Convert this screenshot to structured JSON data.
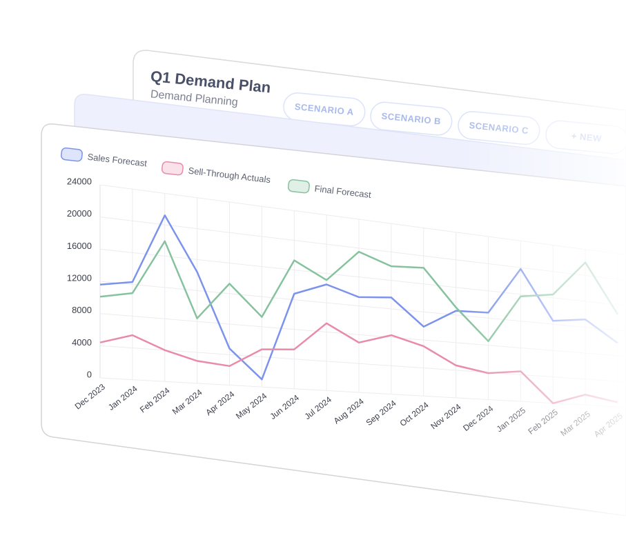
{
  "header": {
    "title": "Q1 Demand Plan",
    "subtitle": "Demand Planning"
  },
  "tabs": [
    "SCENARIO A",
    "SCENARIO B",
    "SCENARIO C",
    "+ NEW"
  ],
  "chart_data": {
    "type": "line",
    "categories": [
      "Dec 2023",
      "Jan 2024",
      "Feb 2024",
      "Mar 2024",
      "Apr 2024",
      "May 2024",
      "Jun 2024",
      "Jul 2024",
      "Aug 2024",
      "Sep 2024",
      "Oct 2024",
      "Nov 2024",
      "Dec 2024",
      "Jan 2025",
      "Feb 2025",
      "Mar 2025",
      "Apr 2025"
    ],
    "series": [
      {
        "name": "Sales Forecast",
        "color": "#7b93ec",
        "values": [
          11600,
          12300,
          21200,
          14400,
          4800,
          1000,
          12800,
          14500,
          13200,
          13600,
          9900,
          12600,
          12800,
          19800,
          12500,
          13200,
          10000
        ]
      },
      {
        "name": "Sell-Through Actuals",
        "color": "#e98aa8",
        "values": [
          4400,
          5600,
          4000,
          2900,
          2500,
          5000,
          5300,
          9200,
          6900,
          8300,
          7100,
          4700,
          3900,
          4500,
          0,
          1600,
          700
        ]
      },
      {
        "name": "Final Forecast",
        "color": "#86c29e",
        "values": [
          10100,
          10900,
          17900,
          8400,
          13300,
          9300,
          17300,
          15100,
          19500,
          18000,
          18300,
          13100,
          8600,
          15700,
          16500,
          22000,
          14500
        ]
      }
    ],
    "ylim": [
      0,
      24000
    ],
    "yticks": [
      0,
      4000,
      8000,
      12000,
      16000,
      20000,
      24000
    ],
    "grid": true
  }
}
